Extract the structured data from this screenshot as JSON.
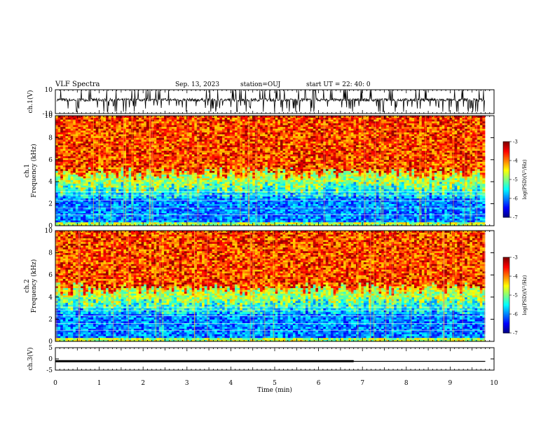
{
  "header": {
    "title": "VLF Spectra",
    "date": "Sep. 13, 2023",
    "station": "station=OUJ",
    "start": "start UT = 22: 40: 0"
  },
  "chart_data": [
    {
      "type": "line",
      "panel": "ch1-waveform",
      "ylabel": "ch.1(V)",
      "ylim": [
        -10,
        10
      ],
      "yticks": [
        "10",
        "-10"
      ],
      "xlim": [
        0,
        10
      ],
      "series": [
        {
          "values_desc": "dense noisy waveform, baseline about 2 V, spikes up to 10 V and down to -10 V"
        }
      ]
    },
    {
      "type": "heatmap",
      "panel": "ch1-spectrogram",
      "ylabel": "ch.1\nFrequency (kHz)",
      "ylim": [
        0,
        10
      ],
      "yticks": [
        "0",
        "2",
        "4",
        "6",
        "8",
        "10"
      ],
      "xlim": [
        0,
        10
      ],
      "colorbar": {
        "label": "log(PSD)(V²/Hz)",
        "range": [
          -7,
          -3
        ],
        "ticks": [
          "-3",
          "-4",
          "-5",
          "-6",
          "-7"
        ]
      },
      "bands": [
        {
          "from_khz": 0.3,
          "to_khz": 2.5,
          "log_psd": -6.0
        },
        {
          "from_khz": 2.5,
          "to_khz": 3.5,
          "log_psd": -5.5
        },
        {
          "from_khz": 3.5,
          "to_khz": 4.8,
          "log_psd": -4.8
        },
        {
          "from_khz": 4.8,
          "to_khz": 10,
          "log_psd": -3.8
        }
      ]
    },
    {
      "type": "heatmap",
      "panel": "ch2-spectrogram",
      "ylabel": "ch.2\nFrequency (kHz)",
      "ylim": [
        0,
        10
      ],
      "yticks": [
        "0",
        "2",
        "4",
        "6",
        "8",
        "10"
      ],
      "xlim": [
        0,
        10
      ],
      "colorbar": {
        "label": "log(PSD)(V²/Hz)",
        "range": [
          -7,
          -3
        ],
        "ticks": [
          "-3",
          "-4",
          "-5",
          "-6",
          "-7"
        ]
      },
      "bands": [
        {
          "from_khz": 0.3,
          "to_khz": 2.5,
          "log_psd": -6.0
        },
        {
          "from_khz": 2.5,
          "to_khz": 3.5,
          "log_psd": -5.5
        },
        {
          "from_khz": 3.5,
          "to_khz": 4.8,
          "log_psd": -4.8
        },
        {
          "from_khz": 4.8,
          "to_khz": 10,
          "log_psd": -3.8
        }
      ]
    },
    {
      "type": "line",
      "panel": "ch3-waveform",
      "ylabel": "ch.3(V)",
      "ylim": [
        -5,
        5
      ],
      "yticks": [
        "5",
        "0",
        "-5"
      ],
      "xlim": [
        0,
        10
      ],
      "xlabel": "Time (min)",
      "xticks": [
        "0",
        "1",
        "2",
        "3",
        "4",
        "5",
        "6",
        "7",
        "8",
        "9",
        "10"
      ],
      "series": [
        {
          "x": [
            0,
            6.8,
            6.8,
            9.8
          ],
          "y": [
            -1.0,
            -1.0,
            -1.1,
            -1.1
          ]
        }
      ]
    }
  ],
  "colors": {
    "axis": "#000000",
    "background": "#ffffff"
  }
}
